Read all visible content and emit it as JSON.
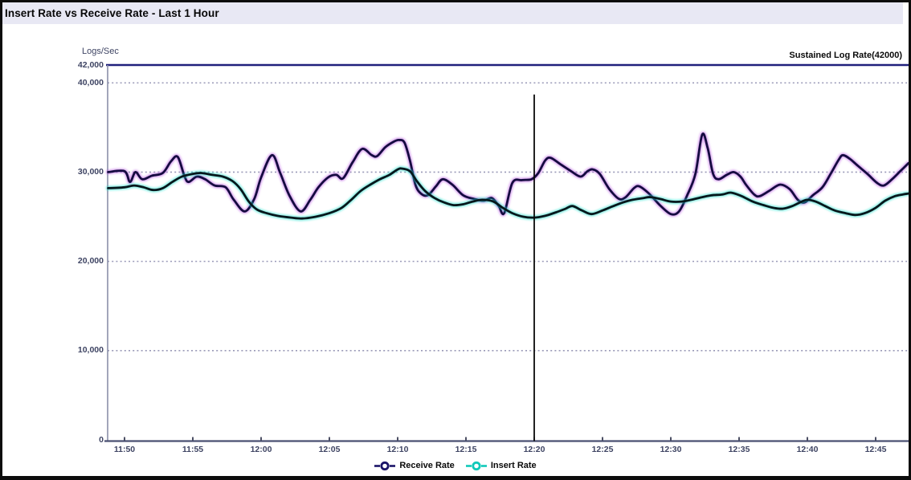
{
  "window": {
    "title": "Insert Rate vs Receive Rate - Last 1 Hour"
  },
  "chart_data": {
    "type": "line",
    "title": "Insert Rate vs Receive Rate - Last 1 Hour",
    "ylabel": "Logs/Sec",
    "xlabel": "",
    "ylim": [
      0,
      42000
    ],
    "grid": "dotted horizontal",
    "legend_position": "bottom-center",
    "y_ticks": [
      {
        "value": 42000,
        "label": "42,000"
      },
      {
        "value": 40000,
        "label": "40,000"
      },
      {
        "value": 30000,
        "label": "30,000"
      },
      {
        "value": 20000,
        "label": "20,000"
      },
      {
        "value": 10000,
        "label": "10,000"
      },
      {
        "value": 0,
        "label": "0"
      }
    ],
    "gridline_values": [
      40000,
      30000,
      20000,
      10000
    ],
    "x_ticks": [
      "11:50",
      "11:55",
      "12:00",
      "12:05",
      "12:10",
      "12:15",
      "12:20",
      "12:25",
      "12:30",
      "12:35",
      "12:40",
      "12:45"
    ],
    "x_start_minutes": -1.2,
    "x_end_minutes": 57.4,
    "x_origin_label": "11:50",
    "threshold": {
      "label": "Sustained Log Rate(42000)",
      "value": 42000,
      "color": "#20207c"
    },
    "cursor": {
      "time": "12:20",
      "minutes": 30,
      "top_value": 38700,
      "color": "#0a0a0a"
    },
    "colors": {
      "receive_core": "#150b40",
      "receive_glow": "#b44ee0",
      "insert_core": "#06171c",
      "insert_glow": "#16ddc9",
      "gridline": "#9a9ab8",
      "axis": "#4a5072",
      "titlebar_bg": "#e8e8f4"
    },
    "series": [
      {
        "name": "Receive Rate",
        "points_minutes_value": [
          [
            -1.2,
            30000
          ],
          [
            0,
            30100
          ],
          [
            0.4,
            28900
          ],
          [
            0.8,
            30000
          ],
          [
            1.3,
            29200
          ],
          [
            2,
            29600
          ],
          [
            2.8,
            29900
          ],
          [
            3.4,
            31200
          ],
          [
            3.9,
            31700
          ],
          [
            4.4,
            29500
          ],
          [
            4.7,
            28900
          ],
          [
            5.3,
            29500
          ],
          [
            5.9,
            29200
          ],
          [
            6.6,
            28500
          ],
          [
            7.4,
            28300
          ],
          [
            8,
            26900
          ],
          [
            8.8,
            25600
          ],
          [
            9.5,
            27000
          ],
          [
            10,
            29400
          ],
          [
            10.8,
            31900
          ],
          [
            11.4,
            29900
          ],
          [
            12.1,
            27300
          ],
          [
            12.9,
            25600
          ],
          [
            13.6,
            26900
          ],
          [
            14.2,
            28300
          ],
          [
            14.9,
            29400
          ],
          [
            15.5,
            29700
          ],
          [
            16,
            29300
          ],
          [
            16.7,
            31100
          ],
          [
            17.4,
            32600
          ],
          [
            18.1,
            31900
          ],
          [
            18.5,
            31800
          ],
          [
            19.1,
            32800
          ],
          [
            19.7,
            33400
          ],
          [
            20.1,
            33600
          ],
          [
            20.5,
            33300
          ],
          [
            20.9,
            31300
          ],
          [
            21.3,
            28600
          ],
          [
            21.7,
            27600
          ],
          [
            22.2,
            27400
          ],
          [
            22.8,
            28400
          ],
          [
            23.3,
            29200
          ],
          [
            24,
            28600
          ],
          [
            24.8,
            27400
          ],
          [
            25.6,
            27000
          ],
          [
            26.3,
            26800
          ],
          [
            26.9,
            27100
          ],
          [
            27.4,
            26200
          ],
          [
            27.8,
            25400
          ],
          [
            28.4,
            28800
          ],
          [
            29.1,
            29100
          ],
          [
            29.8,
            29200
          ],
          [
            30.3,
            29900
          ],
          [
            30.8,
            31300
          ],
          [
            31.2,
            31600
          ],
          [
            31.9,
            30900
          ],
          [
            32.7,
            30100
          ],
          [
            33.4,
            29500
          ],
          [
            33.9,
            30100
          ],
          [
            34.3,
            30300
          ],
          [
            34.8,
            29800
          ],
          [
            35.5,
            28100
          ],
          [
            36.2,
            27000
          ],
          [
            36.7,
            27200
          ],
          [
            37.3,
            28200
          ],
          [
            37.7,
            28400
          ],
          [
            38.4,
            27600
          ],
          [
            39.2,
            26300
          ],
          [
            40,
            25300
          ],
          [
            40.6,
            25600
          ],
          [
            41.2,
            27400
          ],
          [
            41.8,
            29800
          ],
          [
            42.3,
            34200
          ],
          [
            42.7,
            32700
          ],
          [
            43.1,
            29800
          ],
          [
            43.5,
            29200
          ],
          [
            44.1,
            29700
          ],
          [
            44.6,
            30000
          ],
          [
            45.1,
            29500
          ],
          [
            45.5,
            28600
          ],
          [
            46.1,
            27500
          ],
          [
            46.5,
            27300
          ],
          [
            47.2,
            27900
          ],
          [
            48,
            28600
          ],
          [
            48.7,
            28100
          ],
          [
            49.3,
            26900
          ],
          [
            49.8,
            26600
          ],
          [
            50.4,
            27400
          ],
          [
            51.1,
            28300
          ],
          [
            51.7,
            29800
          ],
          [
            52.3,
            31400
          ],
          [
            52.6,
            31900
          ],
          [
            53.1,
            31500
          ],
          [
            53.7,
            30700
          ],
          [
            54.4,
            29800
          ],
          [
            55.1,
            28800
          ],
          [
            55.6,
            28500
          ],
          [
            56.2,
            29200
          ],
          [
            56.8,
            30100
          ],
          [
            57.4,
            31000
          ]
        ]
      },
      {
        "name": "Insert Rate",
        "points_minutes_value": [
          [
            -1.2,
            28200
          ],
          [
            0,
            28300
          ],
          [
            0.7,
            28500
          ],
          [
            1.4,
            28300
          ],
          [
            2.1,
            28000
          ],
          [
            2.8,
            28200
          ],
          [
            3.5,
            28900
          ],
          [
            4.2,
            29500
          ],
          [
            5,
            29800
          ],
          [
            5.6,
            29900
          ],
          [
            6.4,
            29700
          ],
          [
            7.2,
            29500
          ],
          [
            7.9,
            29000
          ],
          [
            8.5,
            28100
          ],
          [
            9.1,
            26700
          ],
          [
            9.7,
            25800
          ],
          [
            10.4,
            25400
          ],
          [
            11.2,
            25100
          ],
          [
            12.2,
            24900
          ],
          [
            13,
            24800
          ],
          [
            14,
            25000
          ],
          [
            15,
            25400
          ],
          [
            15.9,
            26000
          ],
          [
            16.6,
            26900
          ],
          [
            17.3,
            27900
          ],
          [
            18,
            28600
          ],
          [
            18.7,
            29200
          ],
          [
            19.4,
            29700
          ],
          [
            20,
            30300
          ],
          [
            20.3,
            30400
          ],
          [
            20.9,
            30100
          ],
          [
            21.4,
            29000
          ],
          [
            22,
            27900
          ],
          [
            22.7,
            27100
          ],
          [
            23.4,
            26600
          ],
          [
            24.1,
            26300
          ],
          [
            24.8,
            26400
          ],
          [
            25.5,
            26700
          ],
          [
            26.2,
            26900
          ],
          [
            27,
            26700
          ],
          [
            27.7,
            26000
          ],
          [
            28.4,
            25400
          ],
          [
            29.2,
            25000
          ],
          [
            30,
            24900
          ],
          [
            30.8,
            25100
          ],
          [
            31.6,
            25500
          ],
          [
            32.3,
            25900
          ],
          [
            32.8,
            26200
          ],
          [
            33.5,
            25700
          ],
          [
            34.2,
            25300
          ],
          [
            35,
            25700
          ],
          [
            35.8,
            26200
          ],
          [
            36.5,
            26600
          ],
          [
            37.2,
            26900
          ],
          [
            38,
            27100
          ],
          [
            38.5,
            27200
          ],
          [
            39.2,
            27000
          ],
          [
            40,
            26700
          ],
          [
            40.8,
            26700
          ],
          [
            41.5,
            26900
          ],
          [
            42.3,
            27200
          ],
          [
            43,
            27400
          ],
          [
            43.8,
            27500
          ],
          [
            44.4,
            27700
          ],
          [
            45.2,
            27300
          ],
          [
            46,
            26700
          ],
          [
            46.8,
            26300
          ],
          [
            47.5,
            26000
          ],
          [
            48.2,
            25900
          ],
          [
            48.9,
            26200
          ],
          [
            49.6,
            26700
          ],
          [
            50,
            26900
          ],
          [
            50.6,
            26700
          ],
          [
            51.3,
            26200
          ],
          [
            52,
            25700
          ],
          [
            52.8,
            25400
          ],
          [
            53.5,
            25200
          ],
          [
            54.2,
            25400
          ],
          [
            55,
            26000
          ],
          [
            55.7,
            26800
          ],
          [
            56.4,
            27300
          ],
          [
            57,
            27500
          ],
          [
            57.4,
            27600
          ]
        ]
      }
    ],
    "legend": [
      {
        "name": "Receive Rate",
        "marker_color": "#1b1468"
      },
      {
        "name": "Insert Rate",
        "marker_color": "#10c9b9"
      }
    ]
  }
}
